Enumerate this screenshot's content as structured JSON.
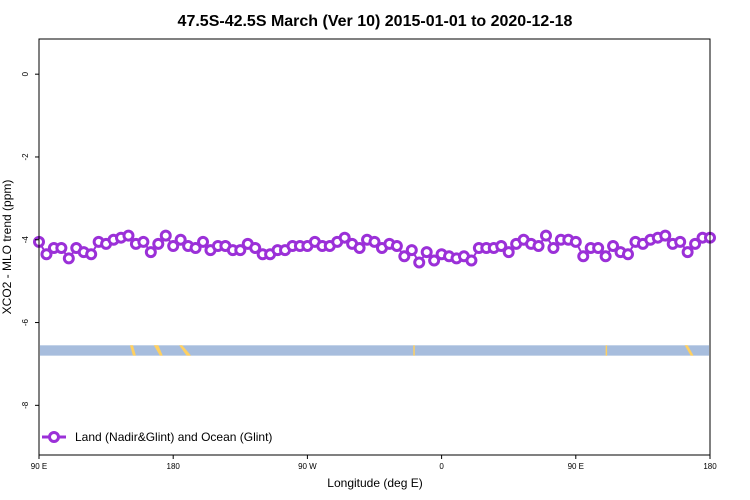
{
  "chart_data": {
    "type": "line",
    "title": "47.5S-42.5S March (Ver 10)   2015-01-01 to 2020-12-18",
    "xlabel": "Longitude (deg E)",
    "ylabel": "XCO2 - MLO trend (ppm)",
    "x_ticks": [
      {
        "value": 90,
        "label": "90 E"
      },
      {
        "value": 180,
        "label": "180"
      },
      {
        "value": 270,
        "label": "90 W"
      },
      {
        "value": 360,
        "label": "0"
      },
      {
        "value": 450,
        "label": "90 E"
      },
      {
        "value": 540,
        "label": "180"
      }
    ],
    "y_ticks": [
      {
        "value": 0,
        "label": "0"
      },
      {
        "value": -2,
        "label": "-2"
      },
      {
        "value": -4,
        "label": "-4"
      },
      {
        "value": -6,
        "label": "-6"
      },
      {
        "value": -8,
        "label": "-8"
      }
    ],
    "xlim": [
      90,
      540
    ],
    "ylim": [
      -9.2,
      0.85
    ],
    "series": [
      {
        "name": "Land (Nadir&Glint) and Ocean (Glint)",
        "color": "#9b30d8",
        "x": [
          90,
          95,
          100,
          105,
          110,
          115,
          120,
          125,
          130,
          135,
          140,
          145,
          150,
          155,
          160,
          165,
          170,
          175,
          180,
          185,
          190,
          195,
          200,
          205,
          210,
          215,
          220,
          225,
          230,
          235,
          240,
          245,
          250,
          255,
          260,
          265,
          270,
          275,
          280,
          285,
          290,
          295,
          300,
          305,
          310,
          315,
          320,
          325,
          330,
          335,
          340,
          345,
          350,
          355,
          360,
          365,
          370,
          375,
          380,
          385,
          390,
          395,
          400,
          405,
          410,
          415,
          420,
          425,
          430,
          435,
          440,
          445,
          450,
          455,
          460,
          465,
          470,
          475,
          480,
          485,
          490,
          495,
          500,
          505,
          510,
          515,
          520,
          525,
          530,
          535,
          540
        ],
        "y": [
          -4.05,
          -4.35,
          -4.2,
          -4.2,
          -4.45,
          -4.2,
          -4.3,
          -4.35,
          -4.05,
          -4.1,
          -4.0,
          -3.95,
          -3.9,
          -4.1,
          -4.05,
          -4.3,
          -4.1,
          -3.9,
          -4.15,
          -4.0,
          -4.15,
          -4.2,
          -4.05,
          -4.25,
          -4.15,
          -4.15,
          -4.25,
          -4.25,
          -4.1,
          -4.2,
          -4.35,
          -4.35,
          -4.25,
          -4.25,
          -4.15,
          -4.15,
          -4.15,
          -4.05,
          -4.15,
          -4.15,
          -4.05,
          -3.95,
          -4.1,
          -4.2,
          -4.0,
          -4.05,
          -4.2,
          -4.1,
          -4.15,
          -4.4,
          -4.25,
          -4.55,
          -4.3,
          -4.5,
          -4.35,
          -4.4,
          -4.45,
          -4.4,
          -4.5,
          -4.2,
          -4.2,
          -4.2,
          -4.15,
          -4.3,
          -4.1,
          -4.0,
          -4.1,
          -4.15,
          -3.9,
          -4.2,
          -4.0,
          -4.0,
          -4.05,
          -4.4,
          -4.2,
          -4.2,
          -4.4,
          -4.15,
          -4.3,
          -4.35,
          -4.05,
          -4.1,
          -4.0,
          -3.95,
          -3.9,
          -4.1,
          -4.05,
          -4.3,
          -4.1,
          -3.95,
          -3.95
        ]
      }
    ],
    "band": {
      "y0": -6.55,
      "y1": -6.8,
      "ocean_color": "#a7bddd",
      "land_color": "#ffd060"
    },
    "land_segments": [
      [
        [
          151,
          153
        ],
        [
          153,
          155
        ]
      ],
      [
        [
          167,
          170
        ],
        [
          171,
          173
        ]
      ],
      [
        [
          184,
          186
        ],
        [
          189,
          192
        ]
      ],
      [
        [
          341,
          342
        ],
        [
          341,
          342
        ]
      ],
      [
        [
          470,
          471
        ],
        [
          470,
          471
        ]
      ],
      [
        [
          523,
          525
        ],
        [
          527,
          529
        ]
      ]
    ],
    "legend": {
      "position": "bottom-left",
      "label": "Land (Nadir&Glint) and Ocean (Glint)"
    },
    "grid": false
  }
}
